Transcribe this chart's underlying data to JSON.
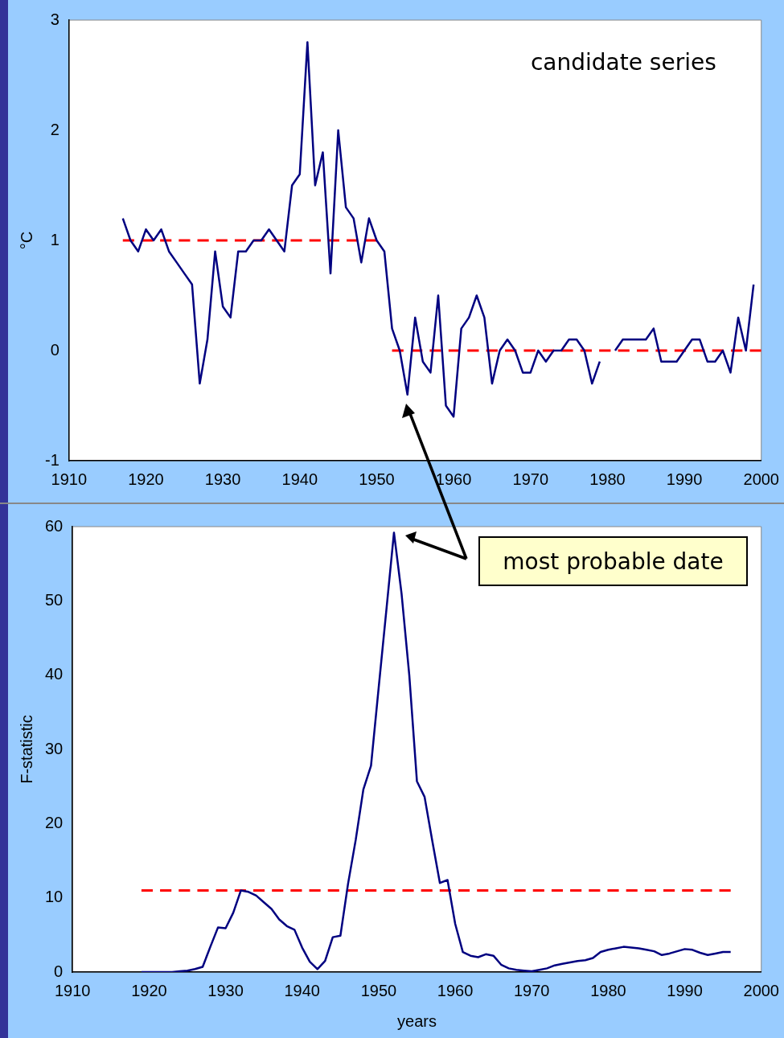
{
  "chart_data": [
    {
      "type": "line",
      "ylabel": "°C",
      "annotations": [
        "candidate series"
      ],
      "xlim": [
        1910,
        2000
      ],
      "xticks": [
        1910,
        1920,
        1930,
        1940,
        1950,
        1960,
        1970,
        1980,
        1990,
        2000
      ],
      "ylim": [
        -1,
        3
      ],
      "yticks": [
        -1,
        0,
        1,
        2,
        3
      ],
      "marker": "none",
      "series": [
        {
          "color": "#000080",
          "x": [
            1917,
            1918,
            1919,
            1920,
            1921,
            1922,
            1923,
            1924,
            1925,
            1926,
            1927,
            1928,
            1929,
            1930,
            1931,
            1932,
            1933,
            1934,
            1935,
            1936,
            1937,
            1938,
            1939,
            1940,
            1941,
            1942,
            1943,
            1944,
            1945,
            1946,
            1947,
            1948,
            1949,
            1950,
            1951,
            1952,
            1953,
            1954,
            1955,
            1956,
            1957,
            1958,
            1959,
            1960,
            1961,
            1962,
            1963,
            1964,
            1965,
            1966,
            1967,
            1968,
            1969,
            1970,
            1971,
            1972,
            1973,
            1974,
            1975,
            1976,
            1977,
            1978,
            1979,
            1980,
            1981,
            1982,
            1983,
            1984,
            1985,
            1986,
            1987,
            1988,
            1989,
            1990,
            1991,
            1992,
            1993,
            1994,
            1995,
            1996,
            1997,
            1998,
            1999
          ],
          "values": [
            1.2,
            1.0,
            0.9,
            1.1,
            1.0,
            1.1,
            0.9,
            0.8,
            0.7,
            0.6,
            -0.3,
            0.1,
            0.9,
            0.4,
            0.3,
            0.9,
            0.9,
            1.0,
            1.0,
            1.1,
            1.0,
            0.9,
            1.5,
            1.6,
            2.8,
            1.5,
            1.8,
            0.7,
            2.0,
            1.3,
            1.2,
            0.8,
            1.2,
            1.0,
            0.9,
            0.2,
            0.0,
            -0.4,
            0.3,
            -0.1,
            -0.2,
            0.5,
            -0.5,
            -0.6,
            0.2,
            0.3,
            0.5,
            0.3,
            -0.3,
            0.0,
            0.1,
            0.0,
            -0.2,
            -0.2,
            0.0,
            -0.1,
            0.0,
            0.0,
            0.1,
            0.1,
            0.0,
            -0.3,
            -0.1,
            null,
            0.0,
            0.1,
            0.1,
            0.1,
            0.1,
            0.2,
            -0.1,
            -0.1,
            -0.1,
            0.0,
            0.1,
            0.1,
            -0.1,
            -0.1,
            0.0,
            -0.2,
            0.3,
            0.0,
            0.6
          ]
        },
        {
          "color": "#ff0000",
          "line_style": "dashed",
          "x": [
            1917,
            1950
          ],
          "values": [
            1,
            1
          ]
        },
        {
          "color": "#ff0000",
          "line_style": "dashed",
          "x": [
            1952,
            2000
          ],
          "values": [
            0,
            0
          ]
        }
      ]
    },
    {
      "type": "line",
      "xlabel": "years",
      "ylabel": "F-statistic",
      "annotations": [
        "most probable date"
      ],
      "xlim": [
        1910,
        2000
      ],
      "xticks": [
        1910,
        1920,
        1930,
        1940,
        1950,
        1960,
        1970,
        1980,
        1990,
        2000
      ],
      "ylim": [
        0,
        60
      ],
      "yticks": [
        0,
        10,
        20,
        30,
        40,
        50,
        60
      ],
      "marker": "none",
      "series": [
        {
          "color": "#000080",
          "x": [
            1919,
            1920,
            1921,
            1922,
            1923,
            1924,
            1925,
            1926,
            1927,
            1928,
            1929,
            1930,
            1931,
            1932,
            1933,
            1934,
            1935,
            1936,
            1937,
            1938,
            1939,
            1940,
            1941,
            1942,
            1943,
            1944,
            1945,
            1946,
            1947,
            1948,
            1949,
            1950,
            1951,
            1952,
            1953,
            1954,
            1955,
            1956,
            1957,
            1958,
            1959,
            1960,
            1961,
            1962,
            1963,
            1964,
            1965,
            1966,
            1967,
            1968,
            1969,
            1970,
            1971,
            1972,
            1973,
            1974,
            1975,
            1976,
            1977,
            1978,
            1979,
            1980,
            1981,
            1982,
            1983,
            1984,
            1985,
            1986,
            1987,
            1988,
            1989,
            1990,
            1991,
            1992,
            1993,
            1994,
            1995,
            1996
          ],
          "values": [
            0,
            0,
            0,
            0,
            0,
            0.1,
            0.2,
            0.4,
            0.7,
            3.4,
            6.0,
            5.9,
            8.0,
            11.0,
            10.8,
            10.3,
            9.4,
            8.5,
            7.1,
            6.2,
            5.7,
            3.3,
            1.4,
            0.4,
            1.5,
            4.7,
            4.9,
            11.9,
            17.8,
            24.6,
            27.8,
            38.3,
            48.7,
            59.2,
            50.9,
            40,
            25.7,
            23.6,
            17.7,
            12.0,
            12.4,
            6.5,
            2.7,
            2.2,
            2.0,
            2.4,
            2.2,
            1.0,
            0.5,
            0.3,
            0.2,
            0.1,
            0.3,
            0.5,
            0.9,
            1.1,
            1.3,
            1.5,
            1.6,
            1.9,
            2.7,
            3.0,
            3.2,
            3.4,
            3.3,
            3.2,
            3.0,
            2.8,
            2.3,
            2.5,
            2.8,
            3.1,
            3.0,
            2.6,
            2.3,
            2.5,
            2.7,
            2.7
          ]
        },
        {
          "color": "#ff0000",
          "line_style": "dashed",
          "x": [
            1919,
            1996
          ],
          "values": [
            11,
            11
          ]
        }
      ]
    }
  ]
}
